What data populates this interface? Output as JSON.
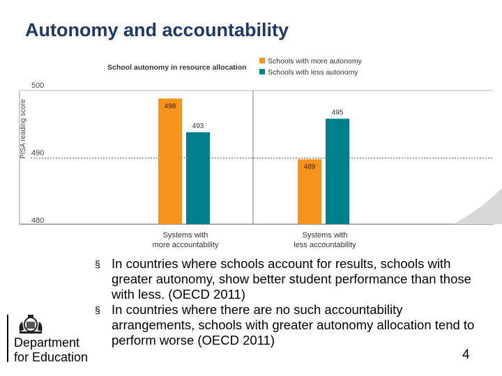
{
  "slide": {
    "title": "Autonomy and accountability",
    "page_number": "4",
    "bullets": [
      "In countries where schools account for results, schools with greater autonomy, show better student performance than those with less. (OECD 2011)",
      "In countries where there are no such accountability arrangements, schools with greater autonomy allocation tend to perform worse (OECD 2011)"
    ],
    "bullet_marker": "§",
    "logo": {
      "line1": "Department",
      "line2": "for Education",
      "icon": "royal-crest-icon"
    }
  },
  "chart_data": {
    "type": "bar",
    "title": "School autonomy in resource allocation",
    "ylabel": "PISA reading score",
    "ylim": [
      480,
      500
    ],
    "yticks": [
      500,
      490,
      480
    ],
    "grid": "dashed at 490",
    "legend_position": "top-right",
    "categories": [
      "Systems with more accountability",
      "Systems with less accountability"
    ],
    "category_lines": [
      [
        "Systems with",
        "more accountability"
      ],
      [
        "Systems with",
        "less accountability"
      ]
    ],
    "series": [
      {
        "name": "Schools with more autonomy",
        "color": "#f7941d",
        "values": [
          498,
          489
        ]
      },
      {
        "name": "Schools with less autonomy",
        "color": "#00808a",
        "values": [
          493,
          495
        ]
      }
    ]
  }
}
